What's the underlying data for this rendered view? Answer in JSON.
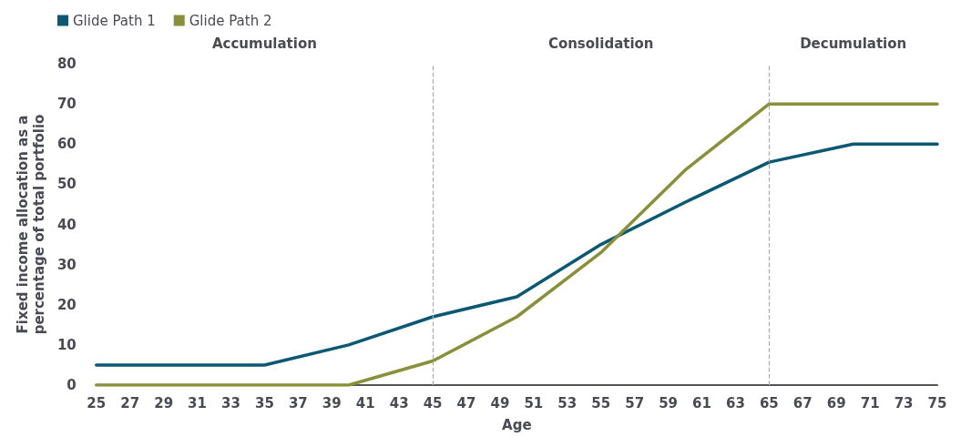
{
  "chart_data": {
    "type": "line",
    "xlabel": "Age",
    "ylabel": "Fixed income allocation as a\npercentage of total portfolio",
    "x": [
      25,
      30,
      35,
      40,
      45,
      50,
      55,
      60,
      65,
      70,
      75
    ],
    "series": [
      {
        "name": "Glide Path 1",
        "color": "#0b5872",
        "values": [
          5,
          5,
          5,
          10,
          17,
          22,
          35,
          45.5,
          55.5,
          60,
          60
        ]
      },
      {
        "name": "Glide Path 2",
        "color": "#8a8f3a",
        "values": [
          0,
          0,
          0,
          0,
          6,
          17,
          33,
          53.5,
          70,
          70,
          70
        ]
      }
    ],
    "xlim": [
      25,
      75
    ],
    "xticks": [
      25,
      27,
      29,
      31,
      33,
      35,
      37,
      39,
      41,
      43,
      45,
      47,
      49,
      51,
      53,
      55,
      57,
      59,
      61,
      63,
      65,
      67,
      69,
      71,
      73,
      75
    ],
    "ylim": [
      0,
      80
    ],
    "yticks": [
      0,
      10,
      20,
      30,
      40,
      50,
      60,
      70,
      80
    ],
    "ref_lines": [
      {
        "axis": "x",
        "value": 45,
        "color": "#aaaaaa",
        "line_style": "dashed"
      },
      {
        "axis": "x",
        "value": 65,
        "color": "#aaaaaa",
        "line_style": "dashed"
      }
    ],
    "annotations": [
      "Accumulation",
      "Consolidation",
      "Decumulation"
    ],
    "grid": false,
    "legend": "top left",
    "marker": "none",
    "line_style": "solid"
  }
}
